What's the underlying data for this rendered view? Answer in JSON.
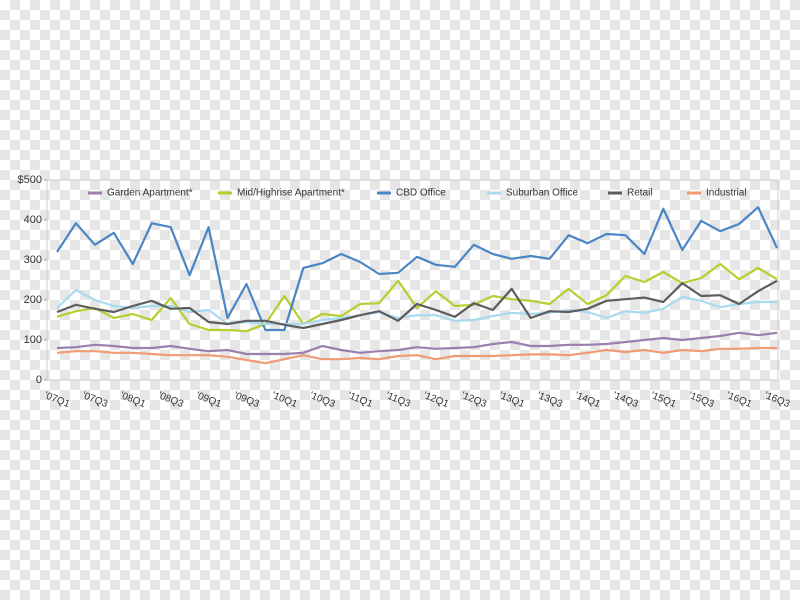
{
  "chart_data": {
    "type": "line",
    "categories": [
      "'07Q1",
      null,
      "'07Q3",
      null,
      "'08Q1",
      null,
      "'08Q3",
      null,
      "'09Q1",
      null,
      "'09Q3",
      null,
      "'10Q1",
      null,
      "'10Q3",
      null,
      "'11Q1",
      null,
      "'11Q3",
      null,
      "'12Q1",
      null,
      "'12Q3",
      null,
      "'13Q1",
      null,
      "'13Q3",
      null,
      "'14Q1",
      null,
      "'14Q3",
      null,
      "'15Q1",
      null,
      "'15Q3",
      null,
      "'16Q1",
      null,
      "'16Q3"
    ],
    "series": [
      {
        "name": "Garden Apartment*",
        "color": "#9b7fae",
        "values": [
          80,
          82,
          88,
          85,
          80,
          80,
          85,
          78,
          72,
          75,
          65,
          65,
          65,
          68,
          85,
          75,
          68,
          72,
          75,
          82,
          78,
          80,
          82,
          90,
          95,
          85,
          85,
          88,
          88,
          90,
          95,
          100,
          105,
          100,
          105,
          110,
          118,
          112,
          118
        ]
      },
      {
        "name": "Mid/Highrise Apartment*",
        "color": "#b5cf2e",
        "values": [
          158,
          172,
          180,
          155,
          165,
          150,
          205,
          140,
          125,
          125,
          122,
          140,
          210,
          140,
          165,
          160,
          190,
          192,
          248,
          180,
          222,
          185,
          188,
          210,
          202,
          198,
          190,
          228,
          190,
          212,
          260,
          245,
          270,
          242,
          255,
          290,
          252,
          280,
          252
        ]
      },
      {
        "name": "CBD Office",
        "color": "#4a86c5",
        "values": [
          320,
          392,
          338,
          368,
          290,
          392,
          382,
          262,
          382,
          155,
          240,
          125,
          125,
          280,
          292,
          315,
          295,
          265,
          268,
          308,
          288,
          283,
          338,
          315,
          303,
          310,
          303,
          362,
          342,
          365,
          362,
          315,
          428,
          325,
          398,
          372,
          390,
          432,
          330
        ]
      },
      {
        "name": "Suburban Office",
        "color": "#a8daf0",
        "values": [
          180,
          225,
          200,
          185,
          180,
          185,
          185,
          170,
          175,
          140,
          145,
          140,
          140,
          140,
          150,
          155,
          162,
          170,
          155,
          162,
          162,
          148,
          150,
          160,
          168,
          165,
          168,
          175,
          170,
          155,
          172,
          168,
          178,
          208,
          198,
          182,
          190,
          195,
          195
        ]
      },
      {
        "name": "Retail",
        "color": "#5d5d5d",
        "values": [
          170,
          188,
          178,
          170,
          185,
          198,
          178,
          180,
          145,
          140,
          148,
          148,
          138,
          130,
          140,
          150,
          162,
          172,
          148,
          190,
          175,
          158,
          192,
          175,
          228,
          155,
          172,
          170,
          178,
          198,
          202,
          206,
          195,
          242,
          210,
          212,
          190,
          222,
          248
        ]
      },
      {
        "name": "Industrial",
        "color": "#ef9b74",
        "values": [
          68,
          72,
          72,
          68,
          68,
          65,
          62,
          62,
          62,
          58,
          50,
          42,
          52,
          62,
          52,
          52,
          55,
          52,
          60,
          62,
          52,
          60,
          60,
          60,
          62,
          64,
          64,
          62,
          68,
          75,
          70,
          75,
          68,
          75,
          72,
          78,
          78,
          80,
          80
        ]
      }
    ],
    "ylim": [
      0,
      500
    ],
    "yticks": [
      0,
      100,
      200,
      300,
      400,
      {
        "value": 500,
        "label": "$500"
      }
    ],
    "grid": false,
    "legend": "top"
  }
}
